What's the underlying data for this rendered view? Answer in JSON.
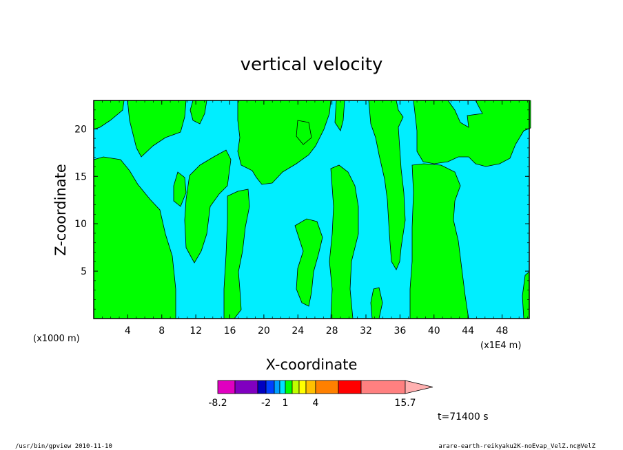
{
  "chart_data": {
    "type": "heatmap",
    "title": "vertical velocity",
    "xlabel": "X-coordinate",
    "ylabel": "Z-coordinate",
    "x_scale_note": "(x1E4 m)",
    "y_scale_note": "(x1000 m)",
    "x_ticks": [
      "4",
      "8",
      "12",
      "16",
      "20",
      "24",
      "28",
      "32",
      "36",
      "40",
      "44",
      "48"
    ],
    "y_ticks": [
      "5",
      "10",
      "15",
      "20"
    ],
    "xlim": [
      0,
      51.2
    ],
    "ylim": [
      0,
      23
    ],
    "regions": {
      "positive_label": "green (1 to 2)",
      "negative_label": "cyan (-1 to 1)"
    },
    "colorbar": {
      "colors": [
        "#e000c0",
        "#8000c0",
        "#0000c0",
        "#0040ff",
        "#00a0ff",
        "#00e0ff",
        "#00ff00",
        "#c0ff00",
        "#ffff00",
        "#ffc000",
        "#ff8000",
        "#ff0000",
        "#ff8080"
      ],
      "tick_labels": [
        "-8.2",
        "-2",
        "1",
        "4",
        "15.7"
      ]
    },
    "time_label": "t=71400 s"
  },
  "footer": {
    "left": "/usr/bin/gpview  2010-11-10",
    "right": "arare-earth-reikyaku2K-noEvap_VelZ.nc@VelZ"
  }
}
